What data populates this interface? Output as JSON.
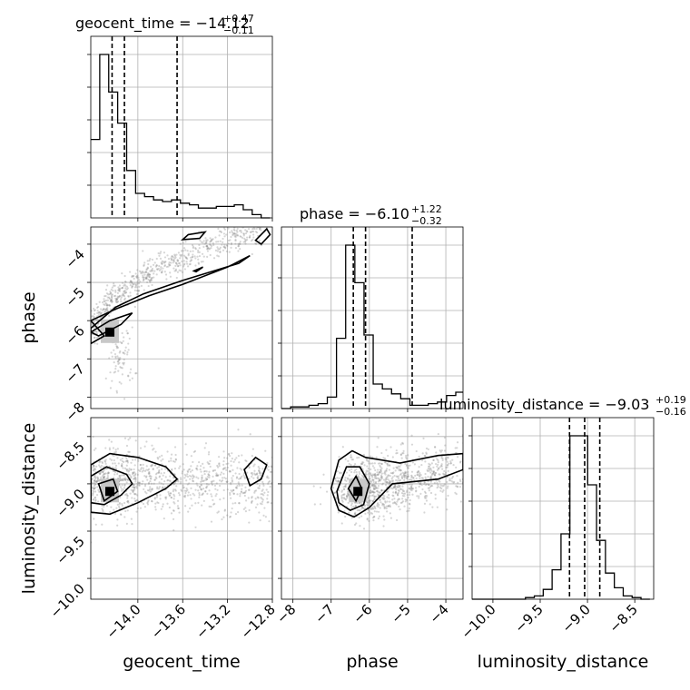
{
  "chart_data": {
    "type": "corner",
    "parameters": [
      "geocent_time",
      "phase",
      "luminosity_distance"
    ],
    "axis_labels": {
      "geocent_time": "geocent_time",
      "phase": "phase",
      "luminosity_distance": "luminosity_distance"
    },
    "ranges": {
      "geocent_time": [
        -14.42,
        -12.8
      ],
      "phase": [
        -8.3,
        -3.55
      ],
      "luminosity_distance": [
        -10.22,
        -8.3
      ]
    },
    "ticks": {
      "geocent_time": {
        "values": [
          -14.0,
          -13.6,
          -13.2,
          -12.8
        ],
        "labels": [
          "−14.0",
          "−13.6",
          "−13.2",
          "−12.8"
        ]
      },
      "phase": {
        "values": [
          -8,
          -7,
          -6,
          -5,
          -4
        ],
        "labels": [
          "−8",
          "−7",
          "−6",
          "−5",
          "−4"
        ]
      },
      "luminosity_distance": {
        "values": [
          -10.0,
          -9.5,
          -9.0,
          -8.5
        ],
        "labels": [
          "−10.0",
          "−9.5",
          "−9.0",
          "−8.5"
        ]
      }
    },
    "titles": [
      {
        "param": "geocent_time",
        "prefix": "geocent_time = ",
        "median": "−14.12",
        "plus": "+0.47",
        "minus": "−0.11"
      },
      {
        "param": "phase",
        "prefix": "phase = ",
        "median": "−6.10",
        "plus": "+1.22",
        "minus": "−0.32"
      },
      {
        "param": "luminosity_distance",
        "prefix": "luminosity_distance = ",
        "median": "−9.03",
        "plus": "+0.19",
        "minus": "−0.16"
      }
    ],
    "quantiles": {
      "geocent_time": [
        -14.23,
        -14.12,
        -13.65
      ],
      "phase": [
        -6.42,
        -6.1,
        -4.88
      ],
      "luminosity_distance": [
        -9.19,
        -9.03,
        -8.87
      ]
    },
    "histograms": {
      "geocent_time": {
        "edges": [
          -14.42,
          -14.34,
          -14.26,
          -14.18,
          -14.1,
          -14.02,
          -13.94,
          -13.86,
          -13.78,
          -13.7,
          -13.62,
          -13.54,
          -13.46,
          -13.38,
          -13.3,
          -13.22,
          -13.14,
          -13.06,
          -12.98,
          -12.9,
          -12.82
        ],
        "counts": [
          48,
          100,
          77,
          58,
          29,
          15,
          13,
          11,
          10,
          11,
          9,
          8,
          6,
          6,
          7,
          7,
          8,
          5,
          2,
          0
        ]
      },
      "phase": {
        "edges": [
          -8.3,
          -8.06,
          -7.82,
          -7.58,
          -7.34,
          -7.1,
          -6.86,
          -6.62,
          -6.38,
          -6.14,
          -5.9,
          -5.66,
          -5.42,
          -5.18,
          -4.94,
          -4.7,
          -4.46,
          -4.22,
          -3.98,
          -3.74,
          -3.5
        ],
        "counts": [
          0,
          1,
          1,
          2,
          3,
          7,
          43,
          100,
          77,
          45,
          15,
          12,
          9,
          6,
          2,
          2,
          3,
          4,
          8,
          10
        ]
      },
      "luminosity_distance": {
        "edges": [
          -10.22,
          -10.126,
          -10.032,
          -9.938,
          -9.844,
          -9.75,
          -9.656,
          -9.562,
          -9.468,
          -9.374,
          -9.28,
          -9.186,
          -9.092,
          -8.998,
          -8.904,
          -8.81,
          -8.716,
          -8.622,
          -8.528,
          -8.434,
          -8.34
        ],
        "counts": [
          0,
          0,
          0,
          0,
          0,
          0,
          1,
          2,
          6,
          18,
          40,
          100,
          100,
          70,
          36,
          16,
          7,
          2,
          1,
          0
        ]
      }
    },
    "density_peaks": {
      "phase_vs_geocent_time": {
        "x": -14.25,
        "y": -6.3
      },
      "luminosity_distance_vs_geocent_time": {
        "x": -14.25,
        "y": -9.08
      },
      "luminosity_distance_vs_phase": {
        "x": -6.3,
        "y": -9.08
      }
    },
    "grid": true
  }
}
